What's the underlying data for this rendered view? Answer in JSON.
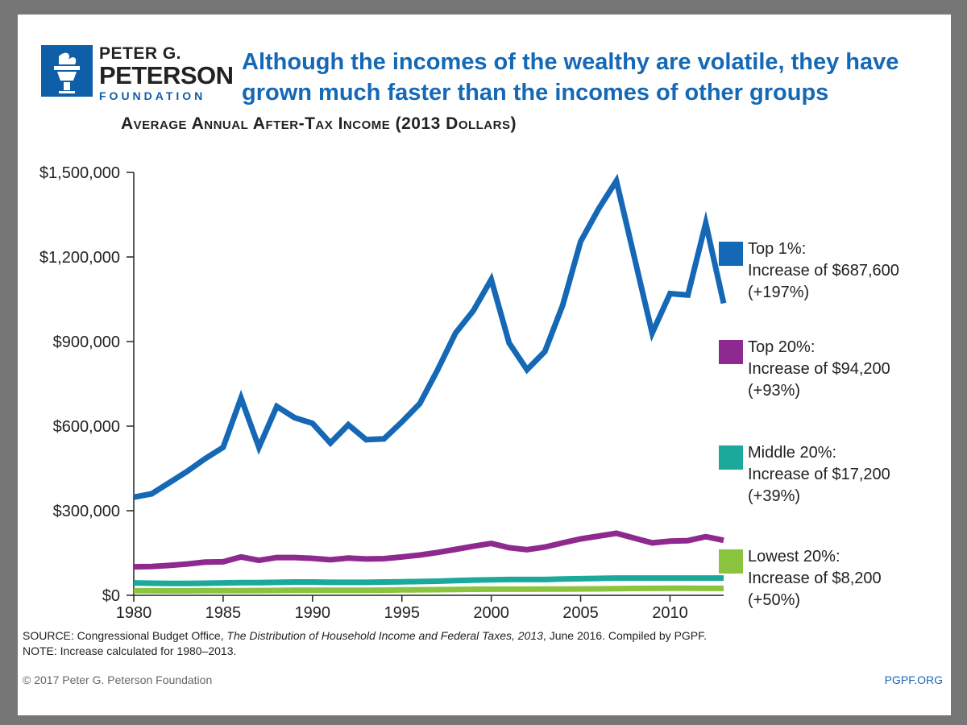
{
  "logo": {
    "line1": "PETER G.",
    "line2": "PETERSON",
    "line3": "FOUNDATION"
  },
  "headline": "Although the incomes of the wealthy are volatile, they have grown much faster than the incomes of other groups",
  "colors": {
    "top1": "#1568b5",
    "top20": "#8e2a8f",
    "middle20": "#1aa99b",
    "lowest20": "#8bc53f",
    "headline": "#1568b5"
  },
  "legend": [
    {
      "name": "Top 1%:",
      "increase": "Increase of $687,600",
      "pct": "(+197%)",
      "color": "#1568b5"
    },
    {
      "name": "Top 20%:",
      "increase": "Increase of $94,200",
      "pct": "(+93%)",
      "color": "#8e2a8f"
    },
    {
      "name": "Middle 20%:",
      "increase": "Increase of $17,200",
      "pct": "(+39%)",
      "color": "#1aa99b"
    },
    {
      "name": "Lowest 20%:",
      "increase": "Increase of $8,200",
      "pct": "(+50%)",
      "color": "#8bc53f"
    }
  ],
  "source": {
    "prefix": "SOURCE: Congressional Budget Office, ",
    "title": "The Distribution of Household Income and Federal Taxes, 2013",
    "suffix": ", June 2016. Compiled by PGPF.",
    "note": "NOTE: Increase calculated for 1980–2013."
  },
  "footer": {
    "copyright": "© 2017 Peter G. Peterson Foundation",
    "url": "PGPF.ORG"
  },
  "chart_data": {
    "type": "line",
    "title": "Average Annual After-Tax Income (2013 Dollars)",
    "xlabel": "",
    "ylabel": "",
    "xlim": [
      1980,
      2013
    ],
    "ylim": [
      0,
      1500000
    ],
    "x_ticks": [
      1980,
      1985,
      1990,
      1995,
      2000,
      2005,
      2010
    ],
    "x_tick_labels": [
      "1980",
      "1985",
      "1990",
      "1995",
      "2000",
      "2005",
      "2010"
    ],
    "y_ticks": [
      0,
      300000,
      600000,
      900000,
      1200000,
      1500000
    ],
    "y_tick_labels": [
      "$0",
      "$300,000",
      "$600,000",
      "$900,000",
      "$1,200,000",
      "$1,500,000"
    ],
    "x": [
      1980,
      1981,
      1982,
      1983,
      1984,
      1985,
      1986,
      1987,
      1988,
      1989,
      1990,
      1991,
      1992,
      1993,
      1994,
      1995,
      1996,
      1997,
      1998,
      1999,
      2000,
      2001,
      2002,
      2003,
      2004,
      2005,
      2006,
      2007,
      2008,
      2009,
      2010,
      2011,
      2012,
      2013
    ],
    "series": [
      {
        "name": "Top 1%",
        "values": [
          348000,
          360000,
          400000,
          440000,
          485000,
          525000,
          700000,
          525000,
          670000,
          630000,
          610000,
          540000,
          605000,
          552000,
          555000,
          615000,
          680000,
          800000,
          930000,
          1010000,
          1120000,
          895000,
          800000,
          865000,
          1030000,
          1255000,
          1370000,
          1470000,
          1200000,
          930000,
          1070000,
          1065000,
          1320000,
          1035600
        ]
      },
      {
        "name": "Top 20%",
        "values": [
          101000,
          102000,
          106000,
          111000,
          118000,
          119000,
          136000,
          124000,
          134000,
          134000,
          131000,
          126000,
          132000,
          129000,
          130000,
          136000,
          143000,
          152000,
          163000,
          174000,
          184000,
          169000,
          162000,
          171000,
          186000,
          200000,
          210000,
          220000,
          203000,
          186000,
          192000,
          194000,
          208000,
          195200
        ]
      },
      {
        "name": "Middle 20%",
        "values": [
          44000,
          43000,
          42000,
          42000,
          43000,
          44000,
          45000,
          45000,
          46000,
          47000,
          47000,
          46000,
          46000,
          46000,
          47000,
          48000,
          49000,
          50000,
          52000,
          54000,
          55000,
          56000,
          56000,
          56000,
          58000,
          59000,
          60000,
          61000,
          61000,
          61000,
          61000,
          61000,
          61000,
          61200
        ]
      },
      {
        "name": "Lowest 20%",
        "values": [
          16400,
          16000,
          15600,
          15800,
          16200,
          16500,
          16700,
          16800,
          17200,
          17600,
          17600,
          17800,
          17800,
          18000,
          18400,
          19200,
          19600,
          20000,
          20600,
          21400,
          21600,
          21800,
          21800,
          22000,
          22200,
          22600,
          23000,
          23600,
          24200,
          24600,
          24800,
          24800,
          24600,
          24600
        ]
      }
    ]
  }
}
